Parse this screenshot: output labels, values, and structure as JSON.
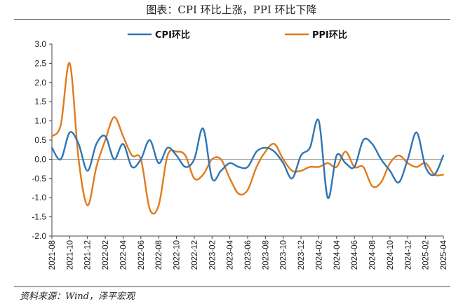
{
  "figure": {
    "title": "图表：CPI 环比上涨，PPI 环比下降",
    "source": "资料来源：Wind，泽平宏观"
  },
  "chart_data": {
    "type": "line",
    "title": "图表：CPI 环比上涨，PPI 环比下降",
    "xlabel": "",
    "ylabel": "",
    "ylim": [
      -2.0,
      3.0
    ],
    "yticks": [
      "3.0",
      "2.5",
      "2.0",
      "1.5",
      "1.0",
      "0.5",
      "0.0",
      "-0.5",
      "-1.0",
      "-1.5",
      "-2.0"
    ],
    "grid": false,
    "legend_position": "top",
    "x": [
      "2021-08",
      "2021-09",
      "2021-10",
      "2021-11",
      "2021-12",
      "2022-01",
      "2022-02",
      "2022-03",
      "2022-04",
      "2022-05",
      "2022-06",
      "2022-07",
      "2022-08",
      "2022-09",
      "2022-10",
      "2022-11",
      "2022-12",
      "2023-01",
      "2023-02",
      "2023-03",
      "2023-04",
      "2023-05",
      "2023-06",
      "2023-07",
      "2023-08",
      "2023-09",
      "2023-10",
      "2023-11",
      "2023-12",
      "2024-01",
      "2024-02",
      "2024-03",
      "2024-04",
      "2024-05",
      "2024-06",
      "2024-07",
      "2024-08",
      "2024-09",
      "2024-10",
      "2024-11",
      "2024-12",
      "2025-01",
      "2025-02",
      "2025-03",
      "2025-04"
    ],
    "x_tick_labels": [
      "2021-08",
      "2021-10",
      "2021-12",
      "2022-02",
      "2022-04",
      "2022-06",
      "2022-08",
      "2022-10",
      "2022-12",
      "2023-02",
      "2023-04",
      "2023-06",
      "2023-08",
      "2023-10",
      "2023-12",
      "2024-02",
      "2024-04",
      "2024-06",
      "2024-08",
      "2024-10",
      "2024-12",
      "2025-02",
      "2025-04"
    ],
    "series": [
      {
        "name": "CPI环比",
        "color": "#2E75B6",
        "values": [
          0.3,
          0.0,
          0.7,
          0.4,
          -0.3,
          0.4,
          0.6,
          0.0,
          0.4,
          -0.2,
          0.0,
          0.5,
          -0.1,
          0.3,
          0.1,
          -0.2,
          0.0,
          0.8,
          -0.5,
          -0.3,
          -0.1,
          -0.2,
          -0.2,
          0.2,
          0.3,
          0.2,
          -0.1,
          -0.5,
          0.1,
          0.3,
          1.0,
          -1.0,
          0.1,
          -0.1,
          -0.2,
          0.5,
          0.4,
          0.0,
          -0.3,
          -0.6,
          0.0,
          0.7,
          -0.2,
          -0.4,
          0.1
        ]
      },
      {
        "name": "PPI环比",
        "color": "#E07B1A",
        "values": [
          0.6,
          0.9,
          2.5,
          0.0,
          -1.2,
          -0.2,
          0.5,
          1.1,
          0.6,
          0.1,
          0.0,
          -1.3,
          -1.2,
          0.1,
          0.2,
          0.1,
          -0.5,
          -0.4,
          0.0,
          0.0,
          -0.5,
          -0.9,
          -0.8,
          -0.2,
          0.2,
          0.4,
          0.0,
          -0.3,
          -0.3,
          -0.2,
          -0.2,
          -0.1,
          -0.2,
          0.2,
          -0.2,
          -0.2,
          -0.7,
          -0.6,
          -0.1,
          0.1,
          -0.1,
          -0.2,
          -0.1,
          -0.4,
          -0.4
        ]
      }
    ]
  }
}
